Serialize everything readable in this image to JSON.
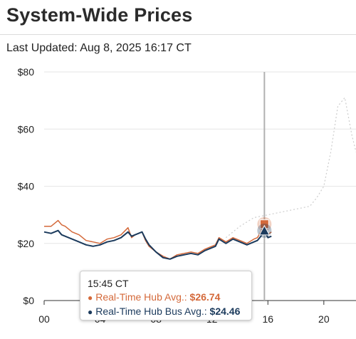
{
  "header": {
    "title": "System-Wide Prices",
    "last_updated": "Last Updated: Aug 8, 2025 16:17 CT"
  },
  "colors": {
    "hub_avg": "#d4693a",
    "hub_bus_avg": "#1b3a5c",
    "forecast": "#cccccc",
    "crosshair": "#b0b0b0"
  },
  "tooltip": {
    "time": "15:45 CT",
    "series": [
      {
        "label": "Real-Time Hub Avg.:",
        "value": "$26.74"
      },
      {
        "label": "Real-Time Hub Bus Avg.:",
        "value": "$24.46"
      }
    ]
  },
  "chart_data": {
    "type": "line",
    "x_unit": "hour",
    "xlim": [
      0,
      22.3
    ],
    "ylim": [
      0,
      80
    ],
    "x_ticks": [
      {
        "v": 0,
        "label": "00"
      },
      {
        "v": 4,
        "label": "04"
      },
      {
        "v": 8,
        "label": "08"
      },
      {
        "v": 12,
        "label": "12"
      },
      {
        "v": 16,
        "label": "16"
      },
      {
        "v": 20,
        "label": "20"
      }
    ],
    "y_ticks": [
      {
        "v": 0,
        "label": "$0"
      },
      {
        "v": 20,
        "label": "$20"
      },
      {
        "v": 40,
        "label": "$40"
      },
      {
        "v": 60,
        "label": "$60"
      },
      {
        "v": 80,
        "label": "$80"
      }
    ],
    "crosshair_x": 15.75,
    "series": [
      {
        "name": "Real-Time Hub Avg.",
        "x": [
          0,
          0.5,
          1,
          1.25,
          1.5,
          2,
          2.5,
          3,
          3.5,
          4,
          4.5,
          5,
          5.5,
          6,
          6.25,
          6.5,
          7,
          7.25,
          7.5,
          8,
          8.5,
          9,
          9.5,
          10,
          10.5,
          11,
          11.5,
          12,
          12.25,
          12.5,
          13,
          13.5,
          14,
          14.5,
          15,
          15.25,
          15.5,
          15.75,
          16,
          16.25
        ],
        "y": [
          26,
          26,
          28,
          26.5,
          26,
          24,
          23,
          21,
          20.5,
          20,
          21.5,
          22,
          23,
          25.5,
          22,
          23,
          24,
          21,
          19,
          17,
          15.5,
          14.5,
          16,
          16.5,
          17,
          16.5,
          18,
          19,
          19.5,
          22,
          20.5,
          22,
          21,
          20,
          21.5,
          22,
          24,
          26.74,
          23,
          24
        ]
      },
      {
        "name": "Real-Time Hub Bus Avg.",
        "x": [
          0,
          0.5,
          1,
          1.25,
          1.5,
          2,
          2.5,
          3,
          3.5,
          4,
          4.5,
          5,
          5.5,
          6,
          6.25,
          6.5,
          7,
          7.25,
          7.5,
          8,
          8.5,
          9,
          9.5,
          10,
          10.5,
          11,
          11.5,
          12,
          12.25,
          12.5,
          13,
          13.5,
          14,
          14.5,
          15,
          15.25,
          15.5,
          15.75,
          16,
          16.25
        ],
        "y": [
          24,
          23.5,
          24.5,
          23,
          22.5,
          21.5,
          20.5,
          19.5,
          19,
          19.5,
          20.5,
          21,
          22,
          24,
          22.5,
          23,
          24,
          21.5,
          19.5,
          17,
          15,
          14.5,
          15.5,
          16,
          16.5,
          16,
          17.5,
          18.5,
          19,
          21.5,
          20,
          21.5,
          20.5,
          19.5,
          20.5,
          21,
          22.5,
          24.46,
          22,
          22.5
        ]
      },
      {
        "name": "",
        "x": [
          13,
          14,
          15,
          16,
          17,
          18,
          19,
          19.5,
          20,
          20.5,
          21,
          21.5,
          22,
          22.3
        ],
        "y": [
          22,
          26,
          29,
          30,
          31,
          32,
          33,
          36,
          40,
          52,
          68,
          71,
          58,
          52
        ]
      }
    ]
  }
}
